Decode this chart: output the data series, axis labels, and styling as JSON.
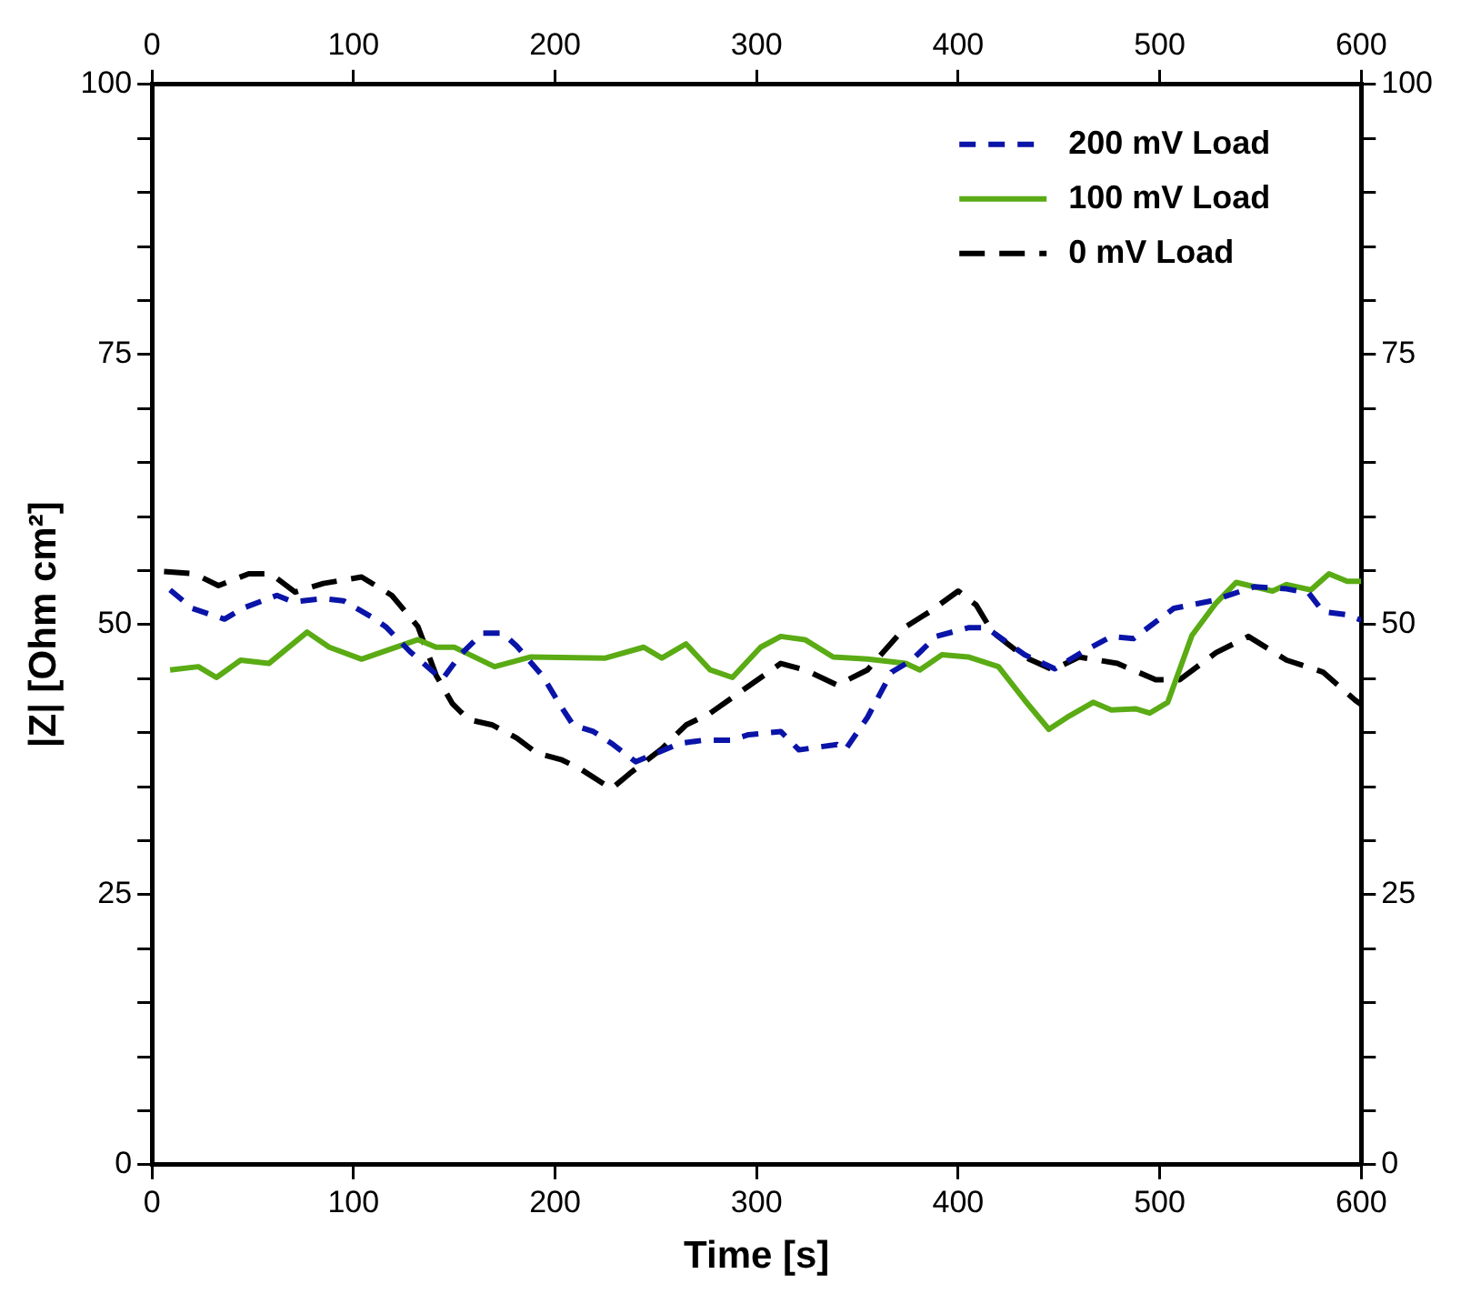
{
  "chart_data": {
    "type": "line",
    "xlabel": "Time [s]",
    "ylabel": "|Z| [Ohm cm²]",
    "xlim": [
      0,
      600
    ],
    "xticks": [
      0,
      100,
      200,
      300,
      400,
      500,
      600
    ],
    "x2lim": [
      0,
      600
    ],
    "x2ticks": [
      0,
      100,
      200,
      300,
      400,
      500,
      600
    ],
    "ylim": [
      0,
      100
    ],
    "yticks": [
      0,
      {
        "value": 5,
        "label": null
      },
      {
        "value": 10,
        "label": null
      },
      {
        "value": 15,
        "label": null
      },
      {
        "value": 20,
        "label": null
      },
      25,
      {
        "value": 30,
        "label": null
      },
      {
        "value": 35,
        "label": null
      },
      {
        "value": 40,
        "label": null
      },
      {
        "value": 45,
        "label": null
      },
      50,
      {
        "value": 55,
        "label": null
      },
      {
        "value": 60,
        "label": null
      },
      {
        "value": 65,
        "label": null
      },
      {
        "value": 70,
        "label": null
      },
      75,
      {
        "value": 80,
        "label": null
      },
      {
        "value": 85,
        "label": null
      },
      {
        "value": 90,
        "label": null
      },
      {
        "value": 95,
        "label": null
      },
      100
    ],
    "y2lim": [
      0,
      100
    ],
    "y2ticks": [
      0,
      {
        "value": 5,
        "label": null
      },
      {
        "value": 10,
        "label": null
      },
      {
        "value": 15,
        "label": null
      },
      {
        "value": 20,
        "label": null
      },
      25,
      {
        "value": 30,
        "label": null
      },
      {
        "value": 35,
        "label": null
      },
      {
        "value": 40,
        "label": null
      },
      {
        "value": 45,
        "label": null
      },
      50,
      {
        "value": 55,
        "label": null
      },
      {
        "value": 60,
        "label": null
      },
      {
        "value": 65,
        "label": null
      },
      {
        "value": 70,
        "label": null
      },
      75,
      {
        "value": 80,
        "label": null
      },
      {
        "value": 85,
        "label": null
      },
      {
        "value": 90,
        "label": null
      },
      {
        "value": 95,
        "label": null
      },
      100
    ],
    "grid": false,
    "legend": "top right",
    "marker": "none",
    "series": [
      {
        "name": "200 mV Load",
        "color": "#0a14a8",
        "line_style": "dashed",
        "x": [
          9,
          20,
          36,
          45,
          62,
          70,
          85,
          95,
          109,
          116,
          128,
          144,
          153,
          164,
          174,
          181,
          194,
          203,
          209,
          219,
          228,
          240,
          262,
          274,
          287,
          296,
          312,
          321,
          340,
          344,
          355,
          367,
          377,
          389,
          405,
          414,
          433,
          448,
          462,
          476,
          487,
          507,
          526,
          547,
          563,
          574,
          581,
          593,
          600
        ],
        "values": [
          53.2,
          51.5,
          50.5,
          51.5,
          52.7,
          52.1,
          52.4,
          52.2,
          50.7,
          49.8,
          47.5,
          44.9,
          47.2,
          49.2,
          49.2,
          48,
          45.2,
          42.4,
          40.7,
          40.1,
          39,
          37.3,
          39,
          39.3,
          39.3,
          39.8,
          40.1,
          38.4,
          38.9,
          38.4,
          41.4,
          45.6,
          46.7,
          48.9,
          49.7,
          49.7,
          47.2,
          45.9,
          47.5,
          48.9,
          48.7,
          51.5,
          52.2,
          53.5,
          53.3,
          52.9,
          51.2,
          50.9,
          50.4
        ]
      },
      {
        "name": "100 mV Load",
        "color": "#5aab14",
        "line_style": "solid",
        "x": [
          9,
          23,
          32,
          44,
          58,
          77,
          88,
          104,
          132,
          141,
          150,
          170,
          188,
          225,
          244,
          253,
          265,
          277,
          288,
          302,
          312,
          324,
          338,
          355,
          374,
          381,
          392,
          405,
          420,
          433,
          445,
          454,
          467,
          476,
          488,
          495,
          504,
          516,
          528,
          538,
          556,
          563,
          575,
          584,
          593,
          600
        ],
        "values": [
          45.8,
          46.1,
          45.1,
          46.7,
          46.4,
          49.3,
          47.9,
          46.8,
          48.6,
          47.9,
          47.9,
          46.1,
          47,
          46.9,
          47.9,
          46.9,
          48.2,
          45.8,
          45.1,
          47.9,
          48.9,
          48.6,
          47,
          46.8,
          46.4,
          45.8,
          47.2,
          47,
          46.1,
          43,
          40.3,
          41.4,
          42.8,
          42.1,
          42.2,
          41.8,
          42.8,
          49,
          52,
          53.9,
          53.1,
          53.7,
          53.2,
          54.7,
          54,
          54
        ]
      },
      {
        "name": "0 mV Load",
        "color": "#000000",
        "line_style": "dashed",
        "x": [
          6,
          21,
          33,
          48,
          59,
          71,
          85,
          104,
          119,
          132,
          141,
          149,
          157,
          169,
          181,
          191,
          203,
          212,
          228,
          237,
          253,
          265,
          277,
          293,
          312,
          324,
          340,
          355,
          374,
          386,
          400,
          409,
          417,
          433,
          447,
          460,
          479,
          498,
          510,
          528,
          544,
          563,
          581,
          597,
          600
        ],
        "values": [
          54.9,
          54.7,
          53.6,
          54.7,
          54.7,
          53,
          53.8,
          54.4,
          52.7,
          49.8,
          45.3,
          42.7,
          41.2,
          40.7,
          39.5,
          38.1,
          37.5,
          36.7,
          34.8,
          36.2,
          38.5,
          40.7,
          41.8,
          43.9,
          46.4,
          45.8,
          44.4,
          45.8,
          49.8,
          51.2,
          53.1,
          51.8,
          49.3,
          47,
          45.8,
          47,
          46.4,
          44.9,
          44.9,
          47.4,
          48.9,
          46.7,
          45.6,
          43,
          42.6
        ]
      }
    ]
  }
}
